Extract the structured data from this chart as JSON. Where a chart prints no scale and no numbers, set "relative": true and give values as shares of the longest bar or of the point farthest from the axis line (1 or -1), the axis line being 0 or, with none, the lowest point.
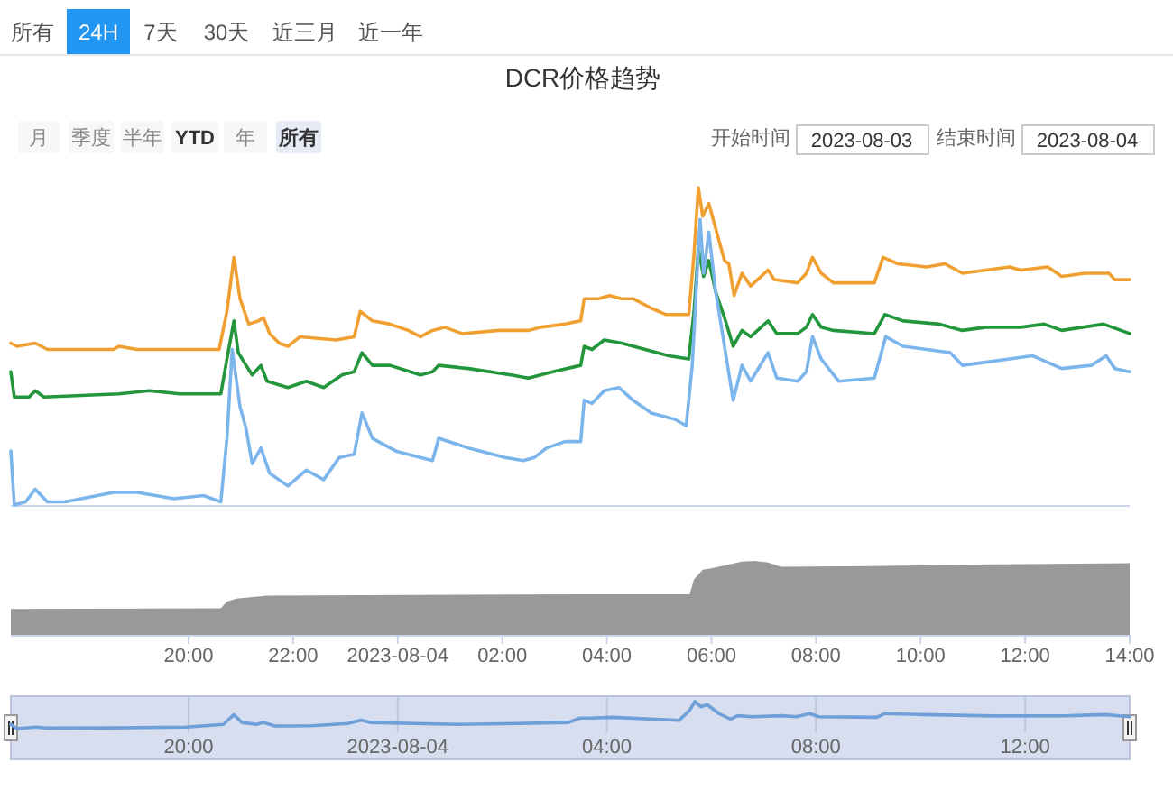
{
  "chart_data": [
    {
      "type": "line",
      "title": "DCR价格趋势",
      "relative": true,
      "xlim": [
        "2023-08-03T16:36",
        "2023-08-04T14:00"
      ],
      "tick_labels": false,
      "annotations": [
        "所有",
        "24H",
        "7天",
        "30天",
        "近三月",
        "近一年",
        "月",
        "季度",
        "半年",
        "YTD",
        "年",
        "所有",
        "开始时间",
        "2023-08-03",
        "结束时间",
        "2023-08-04"
      ],
      "series": [
        {
          "color": "#f0a030",
          "x": [
            "2023-08-03T16:36",
            "2023-08-03T16:43",
            "2023-08-03T17:04",
            "2023-08-03T17:18",
            "2023-08-03T18:34",
            "2023-08-03T18:40",
            "2023-08-03T19:01",
            "2023-08-03T19:50",
            "2023-08-03T20:35",
            "2023-08-03T20:44",
            "2023-08-03T20:52",
            "2023-08-03T20:59",
            "2023-08-03T21:09",
            "2023-08-03T21:20",
            "2023-08-03T21:26",
            "2023-08-03T21:33",
            "2023-08-03T21:44",
            "2023-08-03T21:54",
            "2023-08-03T22:08",
            "2023-08-03T22:49",
            "2023-08-03T23:10",
            "2023-08-03T23:17",
            "2023-08-03T23:31",
            "2023-08-03T23:51",
            "2023-08-04T00:12",
            "2023-08-04T00:26",
            "2023-08-04T00:40",
            "2023-08-04T00:54",
            "2023-08-04T01:14",
            "2023-08-04T01:56",
            "2023-08-04T02:30",
            "2023-08-04T02:44",
            "2023-08-04T03:12",
            "2023-08-04T03:30",
            "2023-08-04T03:34",
            "2023-08-04T03:50",
            "2023-08-04T04:03",
            "2023-08-04T04:17",
            "2023-08-04T04:30",
            "2023-08-04T04:51",
            "2023-08-04T05:08",
            "2023-08-04T05:34",
            "2023-08-04T05:40",
            "2023-08-04T05:45",
            "2023-08-04T05:50",
            "2023-08-04T05:57",
            "2023-08-04T06:05",
            "2023-08-04T06:15",
            "2023-08-04T06:20",
            "2023-08-04T06:26",
            "2023-08-04T06:35",
            "2023-08-04T06:45",
            "2023-08-04T07:05",
            "2023-08-04T07:12",
            "2023-08-04T07:39",
            "2023-08-04T07:49",
            "2023-08-04T07:56",
            "2023-08-04T08:06",
            "2023-08-04T08:20",
            "2023-08-04T08:40",
            "2023-08-04T09:07",
            "2023-08-04T09:17",
            "2023-08-04T09:34",
            "2023-08-04T10:07",
            "2023-08-04T10:28",
            "2023-08-04T10:48",
            "2023-08-04T11:15",
            "2023-08-04T11:42",
            "2023-08-04T11:55",
            "2023-08-04T12:26",
            "2023-08-04T12:42",
            "2023-08-04T13:09",
            "2023-08-04T13:36",
            "2023-08-04T13:43",
            "2023-08-04T14:00"
          ],
          "values": [
            0.51,
            0.5,
            0.51,
            0.49,
            0.49,
            0.5,
            0.49,
            0.49,
            0.49,
            0.61,
            0.78,
            0.65,
            0.57,
            0.58,
            0.59,
            0.54,
            0.51,
            0.5,
            0.53,
            0.52,
            0.53,
            0.61,
            0.58,
            0.57,
            0.55,
            0.53,
            0.55,
            0.56,
            0.54,
            0.55,
            0.55,
            0.56,
            0.57,
            0.58,
            0.65,
            0.65,
            0.66,
            0.65,
            0.65,
            0.62,
            0.6,
            0.6,
            0.79,
            1,
            0.91,
            0.95,
            0.87,
            0.77,
            0.76,
            0.66,
            0.73,
            0.69,
            0.74,
            0.71,
            0.7,
            0.73,
            0.78,
            0.73,
            0.7,
            0.7,
            0.7,
            0.78,
            0.76,
            0.75,
            0.76,
            0.73,
            0.74,
            0.75,
            0.74,
            0.75,
            0.72,
            0.73,
            0.73,
            0.71,
            0.71
          ]
        },
        {
          "color": "#23963c",
          "x": [
            "2023-08-03T16:36",
            "2023-08-03T16:40",
            "2023-08-03T16:57",
            "2023-08-03T17:04",
            "2023-08-03T17:14",
            "2023-08-03T18:40",
            "2023-08-03T19:15",
            "2023-08-03T19:50",
            "2023-08-03T20:37",
            "2023-08-03T20:44",
            "2023-08-03T20:52",
            "2023-08-03T20:57",
            "2023-08-03T21:06",
            "2023-08-03T21:13",
            "2023-08-03T21:23",
            "2023-08-03T21:30",
            "2023-08-03T21:54",
            "2023-08-03T22:15",
            "2023-08-03T22:35",
            "2023-08-03T22:56",
            "2023-08-03T23:10",
            "2023-08-03T23:19",
            "2023-08-03T23:31",
            "2023-08-03T23:51",
            "2023-08-04T00:26",
            "2023-08-04T00:40",
            "2023-08-04T00:47",
            "2023-08-04T01:21",
            "2023-08-04T02:10",
            "2023-08-04T02:30",
            "2023-08-04T02:58",
            "2023-08-04T03:30",
            "2023-08-04T03:34",
            "2023-08-04T03:43",
            "2023-08-04T03:57",
            "2023-08-04T04:17",
            "2023-08-04T04:44",
            "2023-08-04T05:11",
            "2023-08-04T05:34",
            "2023-08-04T05:40",
            "2023-08-04T05:45",
            "2023-08-04T05:51",
            "2023-08-04T05:57",
            "2023-08-04T06:05",
            "2023-08-04T06:15",
            "2023-08-04T06:25",
            "2023-08-04T06:35",
            "2023-08-04T06:45",
            "2023-08-04T07:05",
            "2023-08-04T07:15",
            "2023-08-04T07:39",
            "2023-08-04T07:49",
            "2023-08-04T07:56",
            "2023-08-04T08:06",
            "2023-08-04T08:20",
            "2023-08-04T09:07",
            "2023-08-04T09:19",
            "2023-08-04T09:40",
            "2023-08-04T10:21",
            "2023-08-04T10:48",
            "2023-08-04T11:15",
            "2023-08-04T11:55",
            "2023-08-04T12:22",
            "2023-08-04T12:42",
            "2023-08-04T13:30",
            "2023-08-04T14:00"
          ],
          "values": [
            0.42,
            0.34,
            0.34,
            0.36,
            0.34,
            0.35,
            0.36,
            0.35,
            0.35,
            0.46,
            0.58,
            0.48,
            0.44,
            0.41,
            0.44,
            0.39,
            0.37,
            0.39,
            0.37,
            0.41,
            0.42,
            0.48,
            0.44,
            0.44,
            0.41,
            0.42,
            0.44,
            0.43,
            0.41,
            0.4,
            0.42,
            0.44,
            0.5,
            0.49,
            0.52,
            0.51,
            0.49,
            0.47,
            0.46,
            0.61,
            0.81,
            0.72,
            0.77,
            0.67,
            0.59,
            0.5,
            0.55,
            0.53,
            0.58,
            0.54,
            0.54,
            0.56,
            0.6,
            0.56,
            0.55,
            0.54,
            0.6,
            0.58,
            0.57,
            0.55,
            0.56,
            0.56,
            0.57,
            0.55,
            0.57,
            0.54
          ]
        },
        {
          "color": "#7cb5ec",
          "x": [
            "2023-08-03T16:36",
            "2023-08-03T16:40",
            "2023-08-03T16:53",
            "2023-08-03T17:04",
            "2023-08-03T17:18",
            "2023-08-03T17:38",
            "2023-08-03T18:34",
            "2023-08-03T19:01",
            "2023-08-03T19:43",
            "2023-08-03T20:17",
            "2023-08-03T20:37",
            "2023-08-03T20:44",
            "2023-08-03T20:50",
            "2023-08-03T20:59",
            "2023-08-03T21:06",
            "2023-08-03T21:13",
            "2023-08-03T21:23",
            "2023-08-03T21:33",
            "2023-08-03T21:54",
            "2023-08-03T22:15",
            "2023-08-03T22:35",
            "2023-08-03T22:53",
            "2023-08-03T23:10",
            "2023-08-03T23:19",
            "2023-08-03T23:31",
            "2023-08-03T23:58",
            "2023-08-04T00:26",
            "2023-08-04T00:40",
            "2023-08-04T00:47",
            "2023-08-04T01:21",
            "2023-08-04T02:03",
            "2023-08-04T02:24",
            "2023-08-04T02:37",
            "2023-08-04T02:51",
            "2023-08-04T03:12",
            "2023-08-04T03:30",
            "2023-08-04T03:34",
            "2023-08-04T03:43",
            "2023-08-04T03:57",
            "2023-08-04T04:14",
            "2023-08-04T04:30",
            "2023-08-04T04:51",
            "2023-08-04T05:18",
            "2023-08-04T05:31",
            "2023-08-04T05:38",
            "2023-08-04T05:47",
            "2023-08-04T05:51",
            "2023-08-04T05:57",
            "2023-08-04T06:05",
            "2023-08-04T06:15",
            "2023-08-04T06:25",
            "2023-08-04T06:35",
            "2023-08-04T06:45",
            "2023-08-04T07:05",
            "2023-08-04T07:15",
            "2023-08-04T07:39",
            "2023-08-04T07:49",
            "2023-08-04T07:56",
            "2023-08-04T08:06",
            "2023-08-04T08:26",
            "2023-08-04T09:07",
            "2023-08-04T09:20",
            "2023-08-04T09:40",
            "2023-08-04T10:34",
            "2023-08-04T10:48",
            "2023-08-04T11:15",
            "2023-08-04T11:42",
            "2023-08-04T12:09",
            "2023-08-04T12:42",
            "2023-08-04T13:16",
            "2023-08-04T13:33",
            "2023-08-04T13:43",
            "2023-08-04T14:00"
          ],
          "values": [
            0.17,
            0,
            0.01,
            0.05,
            0.01,
            0.01,
            0.04,
            0.04,
            0.02,
            0.03,
            0.01,
            0.21,
            0.49,
            0.31,
            0.24,
            0.13,
            0.18,
            0.1,
            0.06,
            0.11,
            0.08,
            0.15,
            0.16,
            0.29,
            0.21,
            0.17,
            0.15,
            0.14,
            0.21,
            0.18,
            0.15,
            0.14,
            0.15,
            0.18,
            0.2,
            0.2,
            0.33,
            0.32,
            0.36,
            0.37,
            0.33,
            0.29,
            0.27,
            0.25,
            0.44,
            0.9,
            0.73,
            0.86,
            0.67,
            0.5,
            0.33,
            0.44,
            0.39,
            0.48,
            0.4,
            0.39,
            0.42,
            0.53,
            0.46,
            0.39,
            0.4,
            0.53,
            0.5,
            0.48,
            0.44,
            0.45,
            0.46,
            0.47,
            0.43,
            0.44,
            0.47,
            0.43,
            0.42
          ]
        }
      ]
    },
    {
      "type": "area",
      "relative": true,
      "color": "#999999",
      "xlim": [
        "2023-08-03T16:36",
        "2023-08-04T14:00"
      ],
      "tick_labels": "x",
      "xticks": [
        {
          "value": "2023-08-03T20:00",
          "label": "20:00"
        },
        {
          "value": "2023-08-03T22:00",
          "label": "22:00"
        },
        {
          "value": "2023-08-04T00:00",
          "label": "2023-08-04"
        },
        {
          "value": "2023-08-04T02:00",
          "label": "02:00"
        },
        {
          "value": "2023-08-04T04:00",
          "label": "04:00"
        },
        {
          "value": "2023-08-04T06:00",
          "label": "06:00"
        },
        {
          "value": "2023-08-04T08:00",
          "label": "08:00"
        },
        {
          "value": "2023-08-04T10:00",
          "label": "10:00"
        },
        {
          "value": "2023-08-04T12:00",
          "label": "12:00"
        },
        {
          "value": "2023-08-04T14:00",
          "label": "14:00"
        }
      ],
      "x": [
        "2023-08-03T16:36",
        "2023-08-03T20:37",
        "2023-08-03T20:44",
        "2023-08-03T20:55",
        "2023-08-03T21:30",
        "2023-08-04T03:30",
        "2023-08-04T05:35",
        "2023-08-04T05:40",
        "2023-08-04T05:50",
        "2023-08-04T06:00",
        "2023-08-04T06:35",
        "2023-08-04T06:50",
        "2023-08-04T07:05",
        "2023-08-04T07:20",
        "2023-08-04T09:00",
        "2023-08-04T11:00",
        "2023-08-04T14:00"
      ],
      "values": [
        0.35,
        0.36,
        0.45,
        0.49,
        0.53,
        0.55,
        0.55,
        0.75,
        0.88,
        0.9,
        0.99,
        1,
        0.98,
        0.92,
        0.93,
        0.95,
        0.97
      ]
    },
    {
      "type": "line",
      "relative": true,
      "color": "#6f9fd8",
      "xlim": [
        "2023-08-03T16:36",
        "2023-08-04T14:00"
      ],
      "tick_labels": "x",
      "grid": "x",
      "xticks": [
        {
          "value": "2023-08-03T20:00",
          "label": "20:00"
        },
        {
          "value": "2023-08-04T00:00",
          "label": "2023-08-04"
        },
        {
          "value": "2023-08-04T04:00",
          "label": "04:00"
        },
        {
          "value": "2023-08-04T08:00",
          "label": "08:00"
        },
        {
          "value": "2023-08-04T12:00",
          "label": "12:00"
        }
      ],
      "x": [
        "2023-08-03T16:36",
        "2023-08-03T16:43",
        "2023-08-03T17:05",
        "2023-08-03T17:17",
        "2023-08-03T18:33",
        "2023-08-03T19:57",
        "2023-08-03T20:40",
        "2023-08-03T20:52",
        "2023-08-03T21:01",
        "2023-08-03T21:18",
        "2023-08-03T21:26",
        "2023-08-03T21:39",
        "2023-08-03T22:21",
        "2023-08-03T23:03",
        "2023-08-03T23:18",
        "2023-08-03T23:28",
        "2023-08-04T00:19",
        "2023-08-04T01:10",
        "2023-08-04T02:17",
        "2023-08-04T03:16",
        "2023-08-04T03:29",
        "2023-08-04T03:41",
        "2023-08-04T04:07",
        "2023-08-04T05:23",
        "2023-08-04T05:35",
        "2023-08-04T05:41",
        "2023-08-04T05:48",
        "2023-08-04T05:55",
        "2023-08-04T06:09",
        "2023-08-04T06:22",
        "2023-08-04T06:30",
        "2023-08-04T06:47",
        "2023-08-04T07:21",
        "2023-08-04T07:37",
        "2023-08-04T07:53",
        "2023-08-04T08:03",
        "2023-08-04T09:10",
        "2023-08-04T09:19",
        "2023-08-04T10:01",
        "2023-08-04T11:25",
        "2023-08-04T12:50",
        "2023-08-04T13:32",
        "2023-08-04T14:00"
      ],
      "values": [
        0.16,
        0,
        0.06,
        0.02,
        0.03,
        0.06,
        0.16,
        0.52,
        0.23,
        0.16,
        0.23,
        0.1,
        0.11,
        0.19,
        0.32,
        0.23,
        0.19,
        0.16,
        0.19,
        0.23,
        0.39,
        0.39,
        0.42,
        0.31,
        0.68,
        1,
        0.81,
        0.89,
        0.55,
        0.35,
        0.48,
        0.44,
        0.48,
        0.44,
        0.56,
        0.44,
        0.42,
        0.56,
        0.52,
        0.47,
        0.48,
        0.52,
        0.44
      ]
    }
  ]
}
